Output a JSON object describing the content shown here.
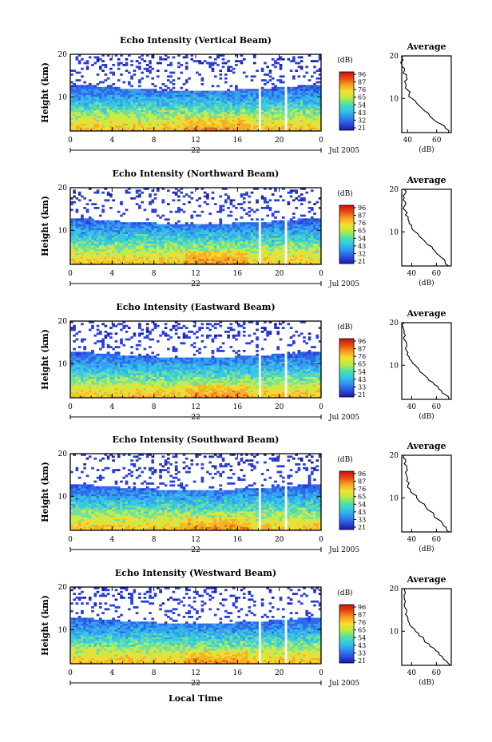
{
  "figure": {
    "xlabel": "Local Time",
    "date_label": "Jul 2005",
    "colorbar_unit": "(dB)",
    "colorbar_ticks_a": [
      "96",
      "87",
      "76",
      "65",
      "54",
      "43",
      "32",
      "21"
    ],
    "colorbar_ticks_b": [
      "96",
      "87",
      "76",
      "65",
      "54",
      "43",
      "33",
      "21"
    ],
    "colorbar_colors": [
      "#1a1aa8",
      "#2a4fe0",
      "#2f8ff0",
      "#2fc8e8",
      "#4ee0a8",
      "#b8ec40",
      "#f4e030",
      "#f8a020",
      "#e84a10",
      "#cc1010"
    ],
    "heatmap_colors": {
      "high": "#1e3cd8",
      "mid": "#2f9ee8",
      "low": "#f2d836",
      "hot": "#f07a20"
    }
  },
  "chart_data": [
    {
      "type": "heatmap",
      "title": "Echo Intensity (Vertical Beam)",
      "ylabel": "Height (km)",
      "x_ticks": [
        "0",
        "4",
        "8",
        "12",
        "16",
        "20",
        "0"
      ],
      "y_ticks": [
        "20",
        "10"
      ],
      "day_label": "22",
      "xlim": [
        0,
        24
      ],
      "ylim": [
        2,
        20
      ],
      "data_gaps": [
        [
          18,
          18.3
        ],
        [
          20.5,
          20.8
        ]
      ],
      "colorbar_ticks": [
        "96",
        "87",
        "76",
        "65",
        "54",
        "43",
        "32",
        "21"
      ],
      "profile": {
        "title": "Average",
        "xlabel": "(dB)",
        "x_ticks": [
          "40",
          "60"
        ],
        "y_ticks": [
          "20",
          "10"
        ],
        "xlim": [
          36,
          70
        ],
        "ylim": [
          2,
          20
        ],
        "height": [
          2,
          3,
          4,
          5,
          6,
          7,
          8,
          9,
          10,
          11,
          12,
          13,
          14,
          15,
          16,
          17,
          18,
          19,
          20
        ],
        "value": [
          68,
          66,
          63,
          58,
          55,
          52,
          49,
          46,
          43,
          41,
          40,
          39,
          38,
          39,
          37,
          38,
          36,
          37,
          37
        ]
      }
    },
    {
      "type": "heatmap",
      "title": "Echo Intensity (Northward Beam)",
      "ylabel": "Height (km)",
      "x_ticks": [
        "0",
        "4",
        "8",
        "12",
        "16",
        "20",
        "0"
      ],
      "y_ticks": [
        "20",
        "10"
      ],
      "day_label": "22",
      "xlim": [
        0,
        24
      ],
      "ylim": [
        2,
        20
      ],
      "data_gaps": [
        [
          18,
          18.3
        ],
        [
          20.5,
          20.8
        ]
      ],
      "colorbar_ticks": [
        "96",
        "87",
        "76",
        "65",
        "54",
        "43",
        "32",
        "21"
      ],
      "profile": {
        "title": "Average",
        "xlabel": "(dB)",
        "x_ticks": [
          "40",
          "60"
        ],
        "y_ticks": [
          "20",
          "10"
        ],
        "xlim": [
          32,
          72
        ],
        "ylim": [
          2,
          20
        ],
        "height": [
          2,
          3,
          4,
          5,
          6,
          7,
          8,
          9,
          10,
          11,
          12,
          13,
          14,
          15,
          16,
          17,
          18,
          19,
          20
        ],
        "value": [
          70,
          67,
          64,
          60,
          57,
          53,
          50,
          46,
          43,
          40,
          38,
          37,
          35,
          35,
          34,
          35,
          34,
          35,
          34
        ]
      }
    },
    {
      "type": "heatmap",
      "title": "Echo Intensity (Eastward Beam)",
      "ylabel": "Height (km)",
      "x_ticks": [
        "0",
        "4",
        "8",
        "12",
        "16",
        "20",
        "0"
      ],
      "y_ticks": [
        "20",
        "10"
      ],
      "day_label": "22",
      "xlim": [
        0,
        24
      ],
      "ylim": [
        2,
        20
      ],
      "data_gaps": [
        [
          18,
          18.3
        ],
        [
          20.5,
          20.8
        ]
      ],
      "colorbar_ticks": [
        "96",
        "87",
        "76",
        "65",
        "54",
        "43",
        "33",
        "21"
      ],
      "profile": {
        "title": "Average",
        "xlabel": "(dB)",
        "x_ticks": [
          "40",
          "60"
        ],
        "y_ticks": [
          "20",
          "10"
        ],
        "xlim": [
          32,
          72
        ],
        "ylim": [
          2,
          20
        ],
        "height": [
          2,
          3,
          4,
          5,
          6,
          7,
          8,
          9,
          10,
          11,
          12,
          13,
          14,
          15,
          16,
          17,
          18,
          19,
          20
        ],
        "value": [
          70,
          68,
          64,
          61,
          57,
          53,
          49,
          46,
          43,
          40,
          38,
          37,
          35,
          36,
          34,
          35,
          34,
          33,
          34
        ]
      }
    },
    {
      "type": "heatmap",
      "title": "Echo Intensity (Southward Beam)",
      "ylabel": "Height (km)",
      "x_ticks": [
        "0",
        "4",
        "8",
        "12",
        "16",
        "20",
        "0"
      ],
      "y_ticks": [
        "20",
        "10"
      ],
      "day_label": "22",
      "xlim": [
        0,
        24
      ],
      "ylim": [
        2,
        20
      ],
      "data_gaps": [
        [
          18,
          18.3
        ],
        [
          20.5,
          20.8
        ]
      ],
      "colorbar_ticks": [
        "96",
        "87",
        "76",
        "65",
        "54",
        "43",
        "33",
        "21"
      ],
      "profile": {
        "title": "Average",
        "xlabel": "(dB)",
        "x_ticks": [
          "40",
          "60"
        ],
        "y_ticks": [
          "20",
          "10"
        ],
        "xlim": [
          32,
          72
        ],
        "ylim": [
          2,
          20
        ],
        "height": [
          2,
          3,
          4,
          5,
          6,
          7,
          8,
          9,
          10,
          11,
          12,
          13,
          14,
          15,
          16,
          17,
          18,
          19,
          20
        ],
        "value": [
          70,
          68,
          65,
          61,
          58,
          54,
          51,
          47,
          44,
          41,
          39,
          37,
          36,
          36,
          35,
          36,
          34,
          35,
          34
        ]
      }
    },
    {
      "type": "heatmap",
      "title": "Echo Intensity (Westward Beam)",
      "ylabel": "Height (km)",
      "x_ticks": [
        "0",
        "4",
        "8",
        "12",
        "16",
        "20",
        "0"
      ],
      "y_ticks": [
        "20",
        "10"
      ],
      "day_label": "22",
      "xlim": [
        0,
        24
      ],
      "ylim": [
        2,
        20
      ],
      "data_gaps": [
        [
          18,
          18.3
        ],
        [
          20.5,
          20.8
        ]
      ],
      "colorbar_ticks": [
        "96",
        "87",
        "76",
        "65",
        "54",
        "43",
        "33",
        "21"
      ],
      "profile": {
        "title": "Average",
        "xlabel": "(dB)",
        "x_ticks": [
          "40",
          "60"
        ],
        "y_ticks": [
          "20",
          "10"
        ],
        "xlim": [
          32,
          72
        ],
        "ylim": [
          2,
          20
        ],
        "height": [
          2,
          3,
          4,
          5,
          6,
          7,
          8,
          9,
          10,
          11,
          12,
          13,
          14,
          15,
          16,
          17,
          18,
          19,
          20
        ],
        "value": [
          71,
          68,
          65,
          62,
          58,
          54,
          50,
          46,
          43,
          40,
          38,
          37,
          35,
          36,
          34,
          35,
          34,
          35,
          34
        ]
      }
    }
  ]
}
